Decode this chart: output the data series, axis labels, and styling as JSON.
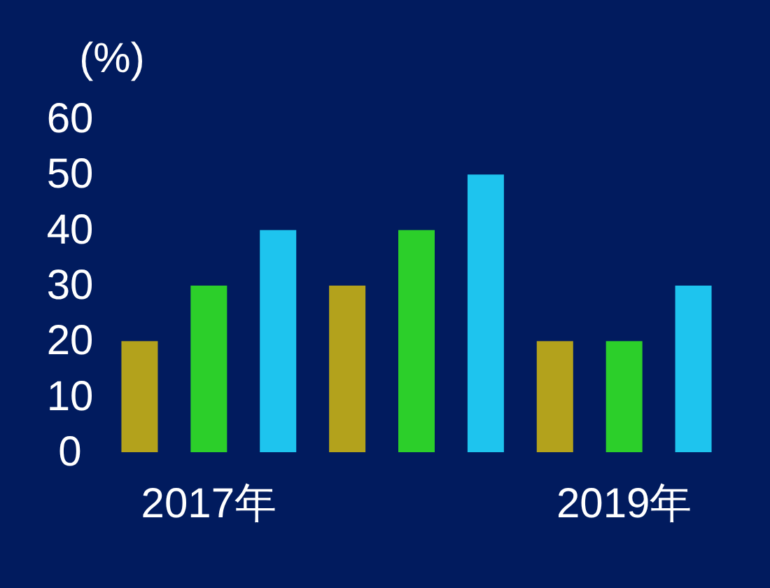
{
  "chart_data": {
    "type": "bar",
    "ylabel": "(%)",
    "categories": [
      "2017年",
      null,
      "2019年"
    ],
    "series": [
      {
        "color": "#b3a21c",
        "values": [
          20,
          30,
          20
        ]
      },
      {
        "color": "#2ccf2a",
        "values": [
          30,
          40,
          20
        ]
      },
      {
        "color": "#1ec4ee",
        "values": [
          40,
          50,
          30
        ]
      }
    ],
    "ylim": [
      0,
      60
    ],
    "yticks": [
      0,
      10,
      20,
      30,
      40,
      50,
      60
    ]
  }
}
